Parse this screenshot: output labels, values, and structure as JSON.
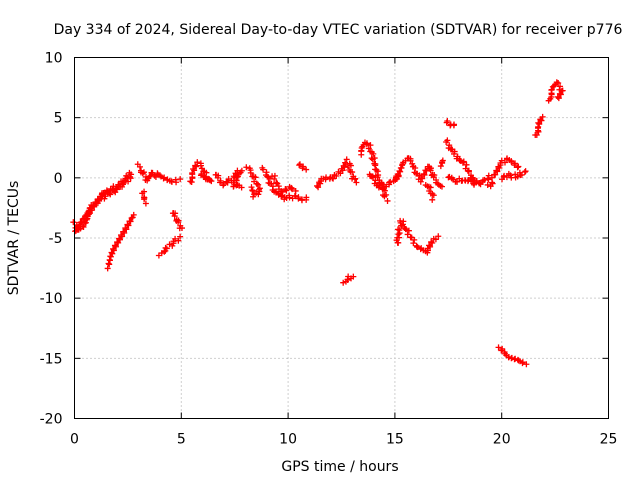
{
  "chart_data": {
    "type": "scatter",
    "title": "Day 334 of 2024, Sidereal Day-to-day VTEC variation (SDTVAR) for receiver p776",
    "xlabel": "GPS time / hours",
    "ylabel": "SDTVAR / TECUs",
    "xlim": [
      0,
      25
    ],
    "ylim": [
      -20,
      10
    ],
    "xticks": [
      0,
      5,
      10,
      15,
      20,
      25
    ],
    "yticks": [
      10,
      5,
      0,
      -5,
      -10,
      -15,
      -20
    ],
    "xtick_labels": [
      "0",
      "5",
      "10",
      "15",
      "20",
      "25"
    ],
    "ytick_labels": [
      "10",
      "5",
      "0",
      "-5",
      "-10",
      "-15",
      "-20"
    ],
    "grid": true,
    "marker": "plus",
    "color": "#ff0000",
    "series": [
      {
        "name": "SDTVAR",
        "segments": [
          [
            [
              0.0,
              -3.8
            ],
            [
              0.2,
              -4.3
            ],
            [
              0.4,
              -4.0
            ],
            [
              0.6,
              -3.2
            ],
            [
              0.8,
              -2.6
            ],
            [
              1.0,
              -2.0
            ],
            [
              1.2,
              -1.5
            ],
            [
              1.4,
              -1.2
            ],
            [
              1.6,
              -1.1
            ],
            [
              1.8,
              -0.9
            ],
            [
              2.0,
              -0.7
            ],
            [
              2.2,
              -0.4
            ],
            [
              2.4,
              -0.1
            ],
            [
              2.6,
              0.3
            ]
          ],
          [
            [
              0.0,
              -4.5
            ],
            [
              0.3,
              -3.6
            ],
            [
              0.6,
              -2.8
            ],
            [
              0.9,
              -2.2
            ],
            [
              1.2,
              -1.8
            ],
            [
              1.5,
              -1.4
            ],
            [
              1.8,
              -1.2
            ],
            [
              2.1,
              -0.8
            ],
            [
              2.4,
              -0.3
            ],
            [
              2.7,
              0.2
            ]
          ],
          [
            [
              1.5,
              -7.4
            ],
            [
              1.7,
              -6.6
            ],
            [
              1.9,
              -5.9
            ],
            [
              2.1,
              -5.3
            ],
            [
              2.3,
              -4.6
            ],
            [
              2.5,
              -4.0
            ],
            [
              2.7,
              -3.4
            ],
            [
              2.8,
              -3.1
            ]
          ],
          [
            [
              3.0,
              1.0
            ],
            [
              3.2,
              0.4
            ],
            [
              3.4,
              -0.2
            ],
            [
              3.6,
              0.5
            ],
            [
              3.8,
              0.2
            ],
            [
              4.0,
              0.3
            ],
            [
              4.3,
              0.0
            ],
            [
              4.6,
              -0.3
            ],
            [
              4.9,
              -0.2
            ]
          ],
          [
            [
              3.2,
              -1.2
            ],
            [
              3.3,
              -2.0
            ]
          ],
          [
            [
              4.0,
              -6.4
            ],
            [
              4.3,
              -5.9
            ],
            [
              4.6,
              -5.4
            ],
            [
              4.9,
              -5.0
            ]
          ],
          [
            [
              4.6,
              -2.8
            ],
            [
              4.8,
              -3.5
            ],
            [
              5.0,
              -4.2
            ]
          ],
          [
            [
              5.4,
              -0.4
            ],
            [
              5.6,
              0.6
            ],
            [
              5.8,
              1.2
            ],
            [
              6.0,
              0.8
            ],
            [
              6.2,
              0.0
            ],
            [
              6.4,
              -0.3
            ],
            [
              6.2,
              -0.2
            ],
            [
              5.9,
              0.2
            ]
          ],
          [
            [
              6.6,
              0.3
            ],
            [
              6.8,
              -0.2
            ],
            [
              7.0,
              -0.5
            ],
            [
              7.2,
              -0.3
            ],
            [
              7.4,
              0.0
            ],
            [
              7.6,
              0.4
            ],
            [
              7.8,
              0.6
            ],
            [
              7.6,
              -0.3
            ],
            [
              7.4,
              -0.6
            ],
            [
              7.8,
              -0.8
            ]
          ],
          [
            [
              8.1,
              0.8
            ],
            [
              8.3,
              0.4
            ],
            [
              8.5,
              -0.4
            ],
            [
              8.7,
              -1.0
            ],
            [
              8.4,
              -1.5
            ],
            [
              8.3,
              -0.8
            ]
          ],
          [
            [
              8.8,
              0.7
            ],
            [
              9.0,
              0.3
            ],
            [
              9.2,
              -0.6
            ],
            [
              9.4,
              -1.2
            ],
            [
              9.6,
              -1.4
            ],
            [
              9.8,
              -1.7
            ],
            [
              10.0,
              -1.6
            ],
            [
              10.3,
              -1.6
            ],
            [
              10.6,
              -1.8
            ],
            [
              10.9,
              -1.7
            ]
          ],
          [
            [
              9.3,
              0.2
            ],
            [
              9.5,
              -0.6
            ],
            [
              9.7,
              -1.1
            ],
            [
              9.9,
              -1.0
            ],
            [
              10.1,
              -0.8
            ],
            [
              10.3,
              -1.2
            ]
          ],
          [
            [
              10.5,
              1.0
            ],
            [
              10.8,
              0.8
            ]
          ],
          [
            [
              11.3,
              -0.8
            ],
            [
              11.5,
              -0.2
            ],
            [
              11.8,
              0.0
            ],
            [
              12.1,
              -0.1
            ],
            [
              12.4,
              0.5
            ],
            [
              12.6,
              1.0
            ],
            [
              12.8,
              1.4
            ],
            [
              13.0,
              0.2
            ],
            [
              13.2,
              -0.4
            ]
          ],
          [
            [
              12.6,
              -8.7
            ],
            [
              12.8,
              -8.4
            ],
            [
              13.0,
              -8.2
            ]
          ],
          [
            [
              13.4,
              2.0
            ],
            [
              13.6,
              2.9
            ],
            [
              13.8,
              2.6
            ],
            [
              14.0,
              1.6
            ],
            [
              14.1,
              0.8
            ],
            [
              14.2,
              0.0
            ],
            [
              14.4,
              -0.5
            ],
            [
              14.5,
              -1.3
            ],
            [
              14.6,
              -1.8
            ]
          ],
          [
            [
              13.8,
              0.4
            ],
            [
              14.0,
              -0.1
            ],
            [
              14.3,
              -0.9
            ],
            [
              14.6,
              -0.6
            ],
            [
              14.9,
              -0.3
            ],
            [
              15.2,
              0.2
            ]
          ],
          [
            [
              15.1,
              -5.5
            ],
            [
              15.2,
              -4.4
            ],
            [
              15.3,
              -3.6
            ],
            [
              15.5,
              -4.2
            ],
            [
              15.8,
              -5.1
            ],
            [
              16.1,
              -5.8
            ],
            [
              16.4,
              -6.2
            ],
            [
              16.6,
              -5.9
            ],
            [
              16.8,
              -5.3
            ],
            [
              17.0,
              -4.9
            ]
          ],
          [
            [
              15.0,
              -0.1
            ],
            [
              15.2,
              0.6
            ],
            [
              15.4,
              1.3
            ],
            [
              15.6,
              1.7
            ],
            [
              15.8,
              1.2
            ],
            [
              16.0,
              0.4
            ],
            [
              16.2,
              -0.2
            ],
            [
              16.4,
              0.2
            ],
            [
              16.6,
              1.0
            ],
            [
              16.8,
              0.1
            ],
            [
              17.0,
              -0.4
            ],
            [
              17.2,
              -0.6
            ]
          ],
          [
            [
              16.5,
              -0.5
            ],
            [
              16.7,
              -1.2
            ],
            [
              16.8,
              -1.7
            ]
          ],
          [
            [
              17.1,
              1.1
            ],
            [
              17.3,
              1.4
            ]
          ],
          [
            [
              17.4,
              4.6
            ],
            [
              17.8,
              4.4
            ]
          ],
          [
            [
              17.4,
              3.0
            ],
            [
              17.7,
              2.2
            ],
            [
              18.0,
              1.6
            ],
            [
              18.3,
              1.0
            ],
            [
              18.5,
              0.4
            ],
            [
              18.7,
              -0.5
            ],
            [
              18.9,
              -0.3
            ]
          ],
          [
            [
              17.5,
              0.2
            ],
            [
              17.8,
              -0.4
            ],
            [
              18.1,
              -0.1
            ],
            [
              18.4,
              -0.3
            ],
            [
              18.7,
              -0.1
            ],
            [
              19.0,
              -0.4
            ],
            [
              19.3,
              -0.1
            ],
            [
              19.6,
              0.2
            ],
            [
              19.9,
              1.1
            ],
            [
              20.2,
              1.5
            ],
            [
              20.5,
              1.2
            ],
            [
              20.8,
              1.0
            ]
          ],
          [
            [
              19.4,
              -0.6
            ],
            [
              19.6,
              -0.5
            ]
          ],
          [
            [
              20.0,
              0.0
            ],
            [
              20.3,
              0.2
            ],
            [
              20.6,
              0.1
            ],
            [
              20.9,
              0.3
            ],
            [
              21.1,
              0.5
            ]
          ],
          [
            [
              19.9,
              -14.2
            ],
            [
              20.1,
              -14.5
            ],
            [
              20.3,
              -14.8
            ],
            [
              20.5,
              -15.0
            ],
            [
              20.8,
              -15.3
            ],
            [
              21.1,
              -15.6
            ]
          ],
          [
            [
              21.6,
              3.5
            ],
            [
              21.7,
              4.1
            ],
            [
              21.8,
              4.6
            ],
            [
              21.9,
              5.0
            ]
          ],
          [
            [
              22.2,
              6.4
            ],
            [
              22.4,
              7.4
            ],
            [
              22.6,
              7.9
            ],
            [
              22.8,
              7.3
            ],
            [
              22.6,
              6.6
            ]
          ]
        ]
      }
    ]
  }
}
